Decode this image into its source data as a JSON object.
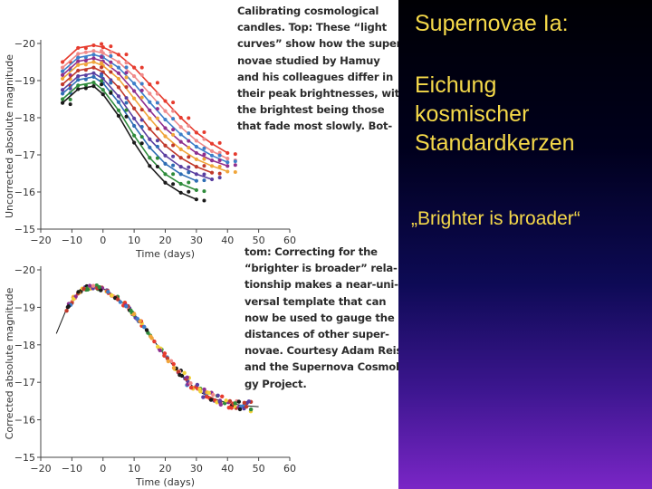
{
  "slide": {
    "title": "Supernovae Ia:",
    "subtitle_lines": [
      "Eichung",
      "kosmischer",
      "Standardkerzen"
    ],
    "quote": "„Brighter is broader“",
    "text_color": "#f5d94a"
  },
  "caption_top": [
    "Calibrating cosmological",
    "candles. Top: These “light",
    "curves” show how the super-",
    "novae studied by Hamuy",
    "and his colleagues differ in",
    "their peak brightnesses, with",
    "the brightest being those",
    "that fade most slowly. Bot-"
  ],
  "caption_bottom": [
    "tom: Correcting for the",
    "“brighter is broader” rela-",
    "tionship makes a near-uni-",
    "versal template that can",
    "now be used to gauge the",
    "distances of other super-",
    "novae. Courtesy Adam Reiss",
    "and the Supernova Cosmolo-",
    "gy Project."
  ],
  "chart_data": [
    {
      "type": "line",
      "panel": "top",
      "xlabel": "Time (days)",
      "ylabel": "Uncorrected absolute magnitude",
      "xlim": [
        -20,
        60
      ],
      "ylim": [
        -20,
        -15
      ],
      "y_inverted": true,
      "xticks": [
        -20,
        -10,
        0,
        10,
        20,
        30,
        40,
        50,
        60
      ],
      "yticks": [
        -20,
        -19,
        -18,
        -17,
        -16,
        -15
      ],
      "x_tick_labels": [
        "−20",
        "−10",
        "0",
        "10",
        "20",
        "30",
        "40",
        "50",
        "60"
      ],
      "y_tick_labels": [
        "−20",
        "−19",
        "−18",
        "−17",
        "−16",
        "−15"
      ],
      "series": [
        {
          "color": "#e63b2e",
          "peak": -19.95,
          "x": [
            -13,
            -8,
            -3,
            0,
            5,
            10,
            15,
            20,
            25,
            30,
            35,
            40
          ],
          "y": [
            -19.5,
            -19.88,
            -19.95,
            -19.9,
            -19.7,
            -19.35,
            -18.9,
            -18.45,
            -18.0,
            -17.6,
            -17.3,
            -17.05
          ]
        },
        {
          "color": "#f08a8a",
          "peak": -19.8,
          "x": [
            -13,
            -8,
            -3,
            0,
            5,
            10,
            15,
            20,
            25,
            30,
            35,
            40
          ],
          "y": [
            -19.35,
            -19.72,
            -19.8,
            -19.74,
            -19.5,
            -19.12,
            -18.65,
            -18.18,
            -17.75,
            -17.38,
            -17.1,
            -16.9
          ]
        },
        {
          "color": "#3d7ec9",
          "peak": -19.7,
          "x": [
            -13,
            -8,
            -3,
            0,
            5,
            10,
            15,
            20,
            25,
            30,
            35,
            40
          ],
          "y": [
            -19.25,
            -19.62,
            -19.7,
            -19.63,
            -19.35,
            -18.92,
            -18.42,
            -17.95,
            -17.55,
            -17.22,
            -16.98,
            -16.8
          ]
        },
        {
          "color": "#8e2f8f",
          "peak": -19.6,
          "x": [
            -13,
            -8,
            -3,
            0,
            5,
            10,
            15,
            20,
            25,
            30,
            35,
            40
          ],
          "y": [
            -19.15,
            -19.52,
            -19.6,
            -19.52,
            -19.2,
            -18.72,
            -18.2,
            -17.72,
            -17.35,
            -17.05,
            -16.85,
            -16.7
          ]
        },
        {
          "color": "#f0a53a",
          "peak": -19.5,
          "x": [
            -13,
            -8,
            -3,
            0,
            5,
            10,
            15,
            20,
            25,
            30,
            35,
            40
          ],
          "y": [
            -19.05,
            -19.42,
            -19.5,
            -19.4,
            -19.05,
            -18.52,
            -17.98,
            -17.5,
            -17.15,
            -16.88,
            -16.7,
            -16.55
          ]
        },
        {
          "color": "#c0392b",
          "peak": -19.35,
          "x": [
            -13,
            -8,
            -3,
            0,
            5,
            10,
            15,
            20,
            25,
            30,
            35
          ],
          "y": [
            -18.9,
            -19.27,
            -19.35,
            -19.23,
            -18.82,
            -18.25,
            -17.7,
            -17.25,
            -16.92,
            -16.68,
            -16.52
          ]
        },
        {
          "color": "#5a3fa0",
          "peak": -19.2,
          "x": [
            -13,
            -8,
            -3,
            0,
            5,
            10,
            15,
            20,
            25,
            30,
            35
          ],
          "y": [
            -18.75,
            -19.12,
            -19.2,
            -19.05,
            -18.58,
            -17.98,
            -17.42,
            -16.98,
            -16.68,
            -16.48,
            -16.34
          ]
        },
        {
          "color": "#2e6db4",
          "peak": -19.1,
          "x": [
            -13,
            -8,
            -3,
            0,
            5,
            10,
            15,
            20,
            25,
            30
          ],
          "y": [
            -18.65,
            -19.02,
            -19.1,
            -18.93,
            -18.42,
            -17.78,
            -17.2,
            -16.76,
            -16.48,
            -16.3
          ]
        },
        {
          "color": "#2e8b3a",
          "peak": -18.95,
          "x": [
            -13,
            -8,
            -3,
            0,
            5,
            10,
            15,
            20,
            25,
            30
          ],
          "y": [
            -18.5,
            -18.87,
            -18.95,
            -18.75,
            -18.2,
            -17.52,
            -16.92,
            -16.48,
            -16.22,
            -16.05
          ]
        },
        {
          "color": "#1a1a1a",
          "peak": -18.85,
          "x": [
            -13,
            -8,
            -3,
            0,
            5,
            10,
            15,
            20,
            25,
            30
          ],
          "y": [
            -18.4,
            -18.77,
            -18.85,
            -18.63,
            -18.05,
            -17.33,
            -16.7,
            -16.25,
            -15.98,
            -15.8
          ]
        }
      ]
    },
    {
      "type": "scatter",
      "panel": "bottom",
      "xlabel": "Time (days)",
      "ylabel": "Corrected absolute magnitude",
      "xlim": [
        -20,
        60
      ],
      "ylim": [
        -20,
        -15
      ],
      "y_inverted": true,
      "xticks": [
        -20,
        -10,
        0,
        10,
        20,
        30,
        40,
        50,
        60
      ],
      "yticks": [
        -20,
        -19,
        -18,
        -17,
        -16,
        -15
      ],
      "x_tick_labels": [
        "−20",
        "−10",
        "0",
        "10",
        "20",
        "30",
        "40",
        "50",
        "60"
      ],
      "y_tick_labels": [
        "−20",
        "−19",
        "−18",
        "−17",
        "−16",
        "−15"
      ],
      "template": {
        "x": [
          -15,
          -12,
          -9,
          -6,
          -3,
          0,
          4,
          8,
          12,
          16,
          20,
          24,
          28,
          32,
          36,
          40,
          45,
          50
        ],
        "y": [
          -18.3,
          -18.9,
          -19.3,
          -19.5,
          -19.55,
          -19.5,
          -19.3,
          -19.0,
          -18.6,
          -18.15,
          -17.7,
          -17.3,
          -16.95,
          -16.7,
          -16.55,
          -16.45,
          -16.38,
          -16.35
        ]
      },
      "point_colors": [
        "#e63b2e",
        "#f08a8a",
        "#3d7ec9",
        "#8e2f8f",
        "#f0a53a",
        "#2e8b3a",
        "#1a1a1a",
        "#5a3fa0",
        "#c0392b",
        "#f2d23a"
      ]
    }
  ]
}
